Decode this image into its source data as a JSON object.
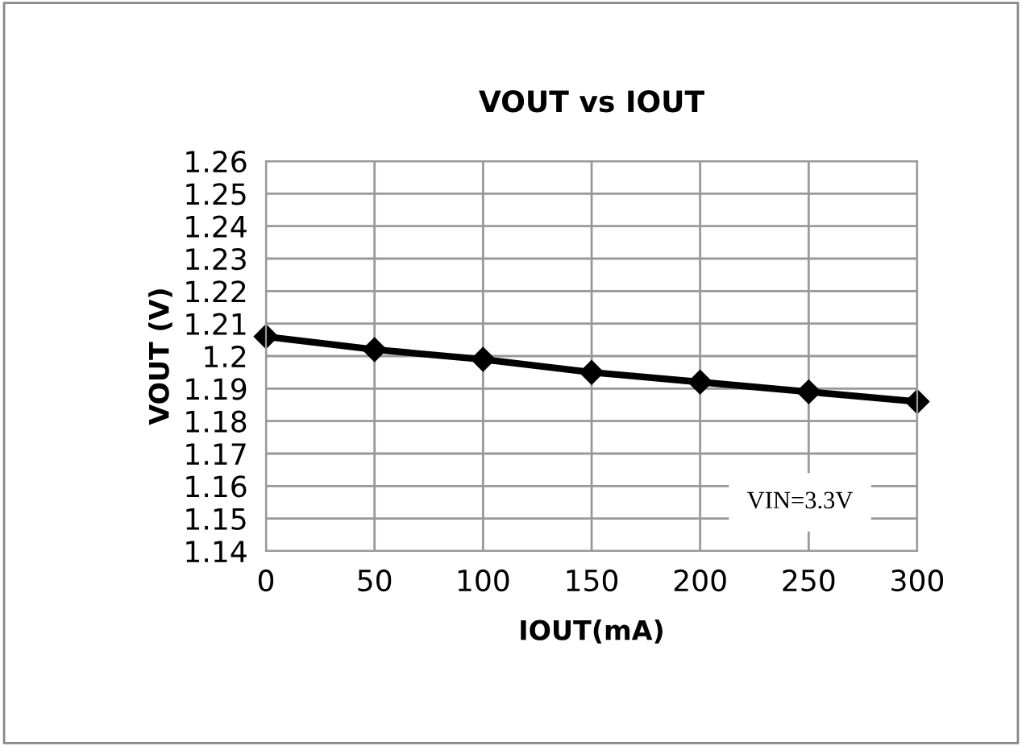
{
  "chart_data": {
    "type": "line",
    "title": "VOUT vs IOUT",
    "xlabel": "IOUT(mA)",
    "ylabel": "VOUT (V)",
    "x": [
      0,
      50,
      100,
      150,
      200,
      250,
      300
    ],
    "series": [
      {
        "color": "#000000",
        "values": [
          1.206,
          1.202,
          1.199,
          1.195,
          1.192,
          1.189,
          1.186
        ]
      }
    ],
    "xlim": [
      0,
      300
    ],
    "xticks": [
      0,
      50,
      100,
      150,
      200,
      250,
      300
    ],
    "ylim": [
      1.14,
      1.26
    ],
    "yticks": [
      1.14,
      1.15,
      1.16,
      1.17,
      1.18,
      1.19,
      1.2,
      1.21,
      1.22,
      1.23,
      1.24,
      1.25,
      1.26
    ],
    "grid": true,
    "marker": "diamond",
    "line_style": "solid",
    "annotations": [
      "VIN=3.3V"
    ]
  }
}
